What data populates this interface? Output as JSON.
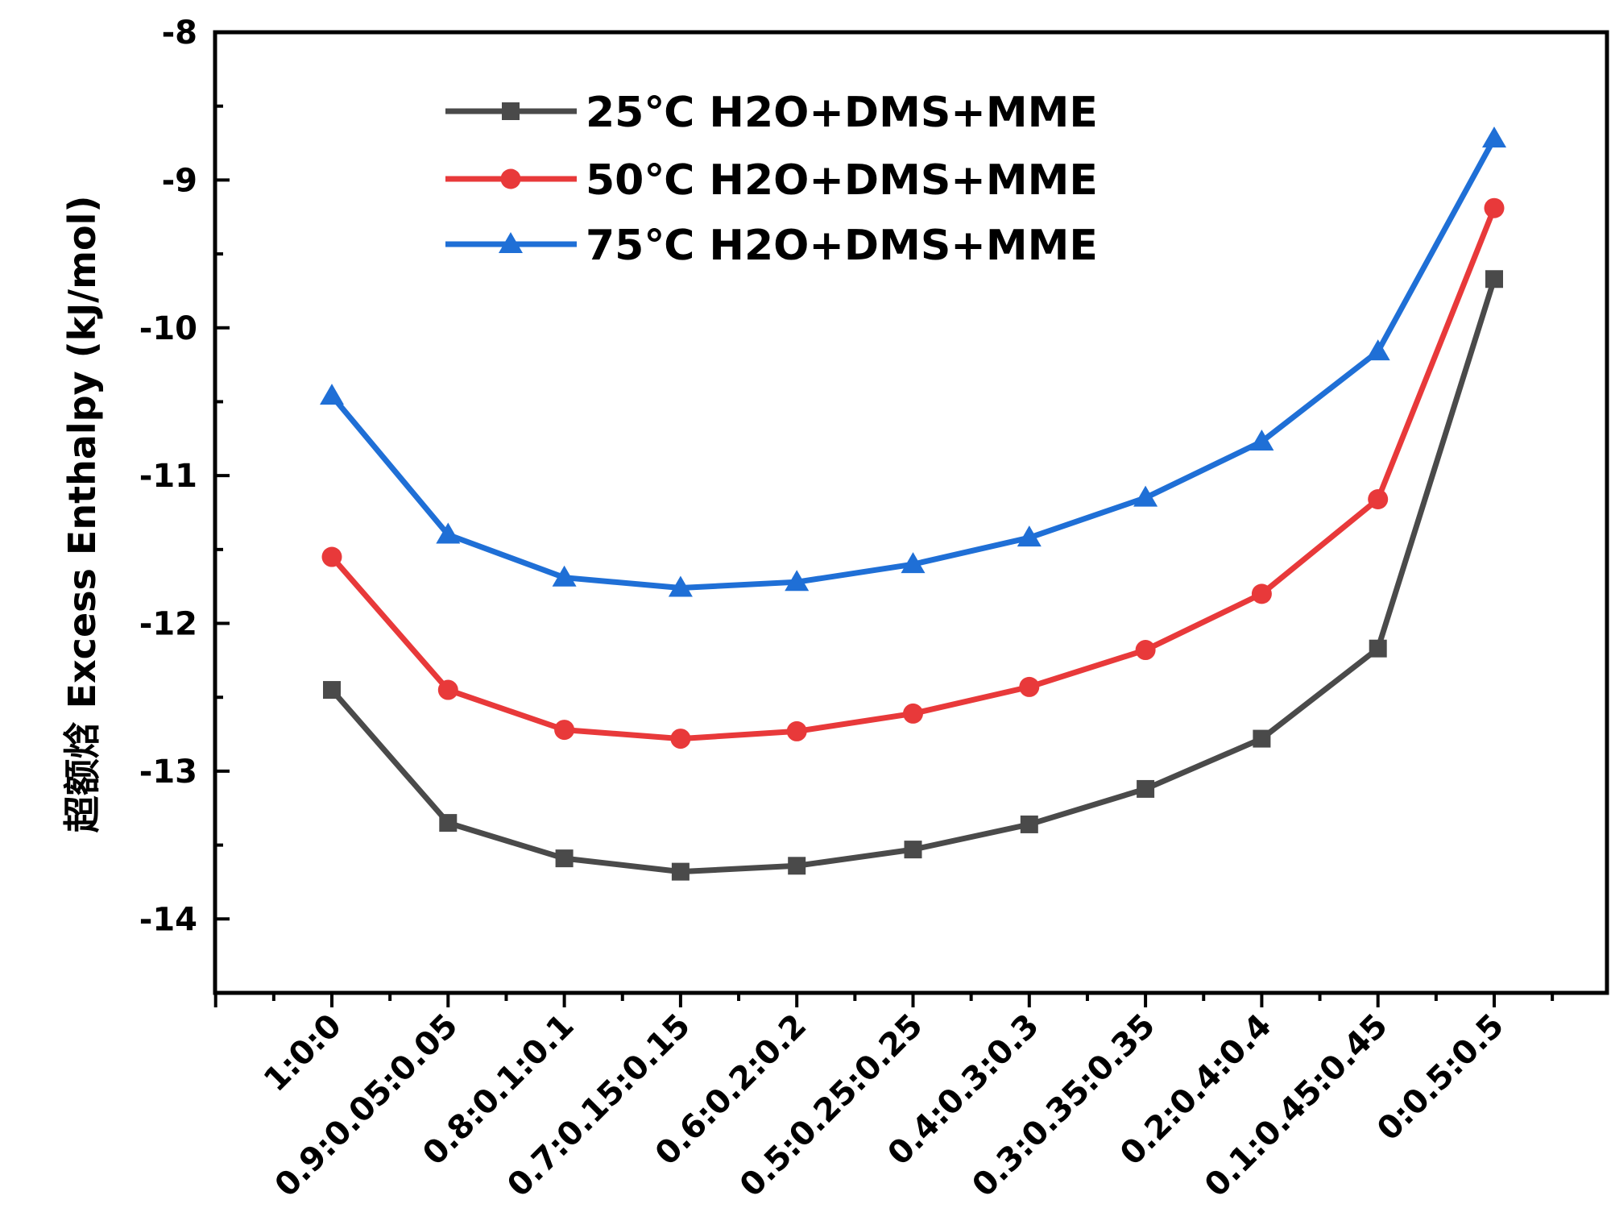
{
  "chart_data": {
    "type": "line",
    "title": "",
    "xlabel": "",
    "ylabel": "超额焓 Excess Enthalpy (kJ/mol)",
    "ylim": [
      -14.5,
      -8
    ],
    "yticks": [
      -14,
      -13,
      -12,
      -11,
      -10,
      -9,
      -8
    ],
    "ytick_labels": [
      "-14",
      "-13",
      "-12",
      "-11",
      "-10",
      "-9",
      "-8"
    ],
    "grid": false,
    "legend_position": "top-left",
    "categories": [
      "1:0:0",
      "0.9:0.05:0.05",
      "0.8:0.1:0.1",
      "0.7:0.15:0.15",
      "0.6:0.2:0.2",
      "0.5:0.25:0.25",
      "0.4:0.3:0.3",
      "0.3:0.35:0.35",
      "0.2:0.4:0.4",
      "0.1:0.45:0.45",
      "0:0.5:0.5"
    ],
    "series": [
      {
        "name": "25℃ H2O+DMS+MME",
        "color": "#4a4a4a",
        "marker": "square",
        "values": [
          -12.45,
          -13.35,
          -13.59,
          -13.68,
          -13.64,
          -13.53,
          -13.36,
          -13.12,
          -12.78,
          -12.17,
          -9.67
        ]
      },
      {
        "name": "50℃ H2O+DMS+MME",
        "color": "#e8393a",
        "marker": "circle",
        "values": [
          -11.55,
          -12.45,
          -12.72,
          -12.78,
          -12.73,
          -12.61,
          -12.43,
          -12.18,
          -11.8,
          -11.16,
          -9.19
        ]
      },
      {
        "name": "75℃ H2O+DMS+MME",
        "color": "#1f6fd6",
        "marker": "triangle",
        "values": [
          -10.46,
          -11.4,
          -11.69,
          -11.76,
          -11.72,
          -11.6,
          -11.42,
          -11.15,
          -10.77,
          -10.16,
          -8.72
        ]
      }
    ]
  }
}
